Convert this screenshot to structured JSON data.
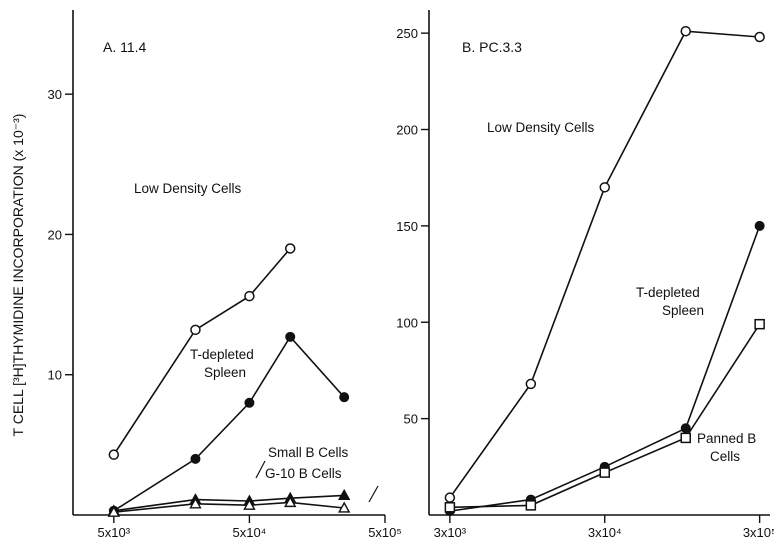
{
  "ylabel": "T CELL [³H]THYMIDINE INCORPORATION (x 10⁻³)",
  "chart_data": [
    {
      "type": "line",
      "title": "A. 11.4",
      "xscale": "log",
      "xlim": [
        2500,
        500000
      ],
      "ylim": [
        0,
        36
      ],
      "xticks": [
        5000,
        50000,
        500000
      ],
      "xticklabels": [
        "5x10³",
        "5x10⁴",
        "5x10⁵"
      ],
      "yticks": [
        10,
        20,
        30
      ],
      "yticklabels": [
        "10",
        "20",
        "30"
      ],
      "series": [
        {
          "name": "Low Density Cells",
          "marker": "open-circle",
          "x": [
            5000,
            20000,
            50000,
            100000
          ],
          "y": [
            4.3,
            13.2,
            15.6,
            19.0
          ]
        },
        {
          "name": "T-depleted Spleen",
          "marker": "filled-circle",
          "x": [
            5000,
            20000,
            50000,
            100000,
            250000
          ],
          "y": [
            0.3,
            4.0,
            8.0,
            12.7,
            8.4
          ]
        },
        {
          "name": "Small B Cells",
          "marker": "filled-triangle",
          "x": [
            5000,
            20000,
            50000,
            100000,
            250000
          ],
          "y": [
            0.3,
            1.1,
            1.0,
            1.2,
            1.4
          ]
        },
        {
          "name": "G-10 B Cells",
          "marker": "open-triangle",
          "x": [
            5000,
            20000,
            50000,
            100000,
            250000
          ],
          "y": [
            0.2,
            0.8,
            0.7,
            0.9,
            0.5
          ]
        }
      ]
    },
    {
      "type": "line",
      "title": "B. PC.3.3",
      "xscale": "log",
      "xlim": [
        2200,
        350000
      ],
      "ylim": [
        0,
        262
      ],
      "xticks": [
        3000,
        30000,
        300000
      ],
      "xticklabels": [
        "3x10³",
        "3x10⁴",
        "3x10⁵"
      ],
      "yticks": [
        50,
        100,
        150,
        200,
        250
      ],
      "yticklabels": [
        "50",
        "100",
        "150",
        "200",
        "250"
      ],
      "series": [
        {
          "name": "Low Density Cells",
          "marker": "open-circle",
          "x": [
            3000,
            10000,
            30000,
            100000,
            300000
          ],
          "y": [
            9,
            68,
            170,
            251,
            248
          ]
        },
        {
          "name": "T-depleted Spleen",
          "marker": "filled-circle",
          "x": [
            3000,
            10000,
            30000,
            100000,
            300000
          ],
          "y": [
            2,
            8,
            25,
            45,
            150
          ]
        },
        {
          "name": "Panned B Cells",
          "marker": "open-square",
          "x": [
            3000,
            10000,
            30000,
            100000,
            300000
          ],
          "y": [
            4,
            5,
            22,
            40,
            99
          ]
        }
      ]
    }
  ],
  "annotations": {
    "a_low_density": "Low Density Cells",
    "a_tdep_1": "T-depleted",
    "a_tdep_2": "Spleen",
    "a_small_b": "Small B Cells",
    "a_g10": "G-10 B Cells",
    "b_low_density": "Low Density Cells",
    "b_tdep_1": "T-depleted",
    "b_tdep_2": "Spleen",
    "b_panned_1": "Panned B",
    "b_panned_2": "Cells"
  }
}
